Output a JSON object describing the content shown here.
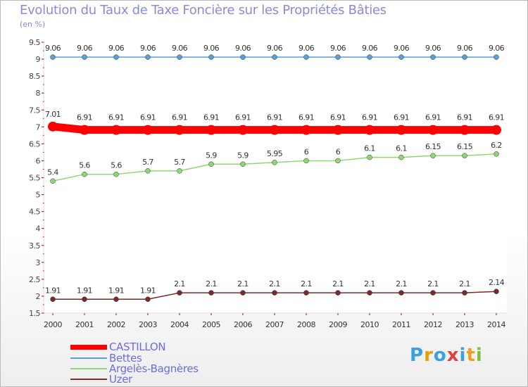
{
  "title": "Evolution du Taux de Taxe Foncière sur les Propriétés Bâties",
  "subtitle": "(en %)",
  "logo": {
    "text": "Proxiti",
    "letters": [
      "P",
      "r",
      "o",
      "x",
      "i",
      "t",
      "i"
    ],
    "colors": [
      "#3aa0e0",
      "#e8a000",
      "#3aa0e0",
      "#e04040",
      "#3aa0e0",
      "#f0a020",
      "#7cc040"
    ]
  },
  "chart_data": {
    "type": "line",
    "title": "Evolution du Taux de Taxe Foncière sur les Propriétés Bâties",
    "ylabel": "(en %)",
    "xlabel": "",
    "ylim": [
      1.5,
      9.5
    ],
    "yticks": [
      "1.5",
      "2",
      "2.5",
      "3",
      "3.5",
      "4",
      "4.5",
      "5",
      "5.5",
      "6",
      "6.5",
      "7",
      "7.5",
      "8",
      "8.5",
      "9",
      "9.5"
    ],
    "categories": [
      "2000",
      "2001",
      "2002",
      "2003",
      "2004",
      "2005",
      "2006",
      "2007",
      "2008",
      "2009",
      "2010",
      "2011",
      "2012",
      "2013",
      "2014"
    ],
    "legend_position": "bottom-left",
    "series": [
      {
        "name": "CASTILLON",
        "color": "#ff0000",
        "highlight": true,
        "values": [
          7.01,
          6.91,
          6.91,
          6.91,
          6.91,
          6.91,
          6.91,
          6.91,
          6.91,
          6.91,
          6.91,
          6.91,
          6.91,
          6.91,
          6.91
        ],
        "labels": [
          "7.01",
          "6.91",
          "6.91",
          "6.91",
          "6.91",
          "6.91",
          "6.91",
          "6.91",
          "6.91",
          "6.91",
          "6.91",
          "6.91",
          "6.91",
          "6.91",
          "6.91"
        ]
      },
      {
        "name": "Bettes",
        "color": "#5aa0d8",
        "highlight": false,
        "values": [
          9.06,
          9.06,
          9.06,
          9.06,
          9.06,
          9.06,
          9.06,
          9.06,
          9.06,
          9.06,
          9.06,
          9.06,
          9.06,
          9.06,
          9.06
        ],
        "labels": [
          "9.06",
          "9.06",
          "9.06",
          "9.06",
          "9.06",
          "9.06",
          "9.06",
          "9.06",
          "9.06",
          "9.06",
          "9.06",
          "9.06",
          "9.06",
          "9.06",
          "9.06"
        ]
      },
      {
        "name": "Argelès-Bagnères",
        "color": "#8cd870",
        "highlight": false,
        "values": [
          5.4,
          5.6,
          5.6,
          5.7,
          5.7,
          5.9,
          5.9,
          5.95,
          6,
          6,
          6.1,
          6.1,
          6.15,
          6.15,
          6.2
        ],
        "labels": [
          "5.4",
          "5.6",
          "5.6",
          "5.7",
          "5.7",
          "5.9",
          "5.9",
          "5.95",
          "6",
          "6",
          "6.1",
          "6.1",
          "6.15",
          "6.15",
          "6.2"
        ]
      },
      {
        "name": "Uzer",
        "color": "#7a2a2a",
        "highlight": false,
        "values": [
          1.91,
          1.91,
          1.91,
          1.91,
          2.1,
          2.1,
          2.1,
          2.1,
          2.1,
          2.1,
          2.1,
          2.1,
          2.1,
          2.1,
          2.14
        ],
        "labels": [
          "1.91",
          "1.91",
          "1.91",
          "1.91",
          "2.1",
          "2.1",
          "2.1",
          "2.1",
          "2.1",
          "2.1",
          "2.1",
          "2.1",
          "2.1",
          "2.1",
          "2.14"
        ]
      }
    ]
  }
}
